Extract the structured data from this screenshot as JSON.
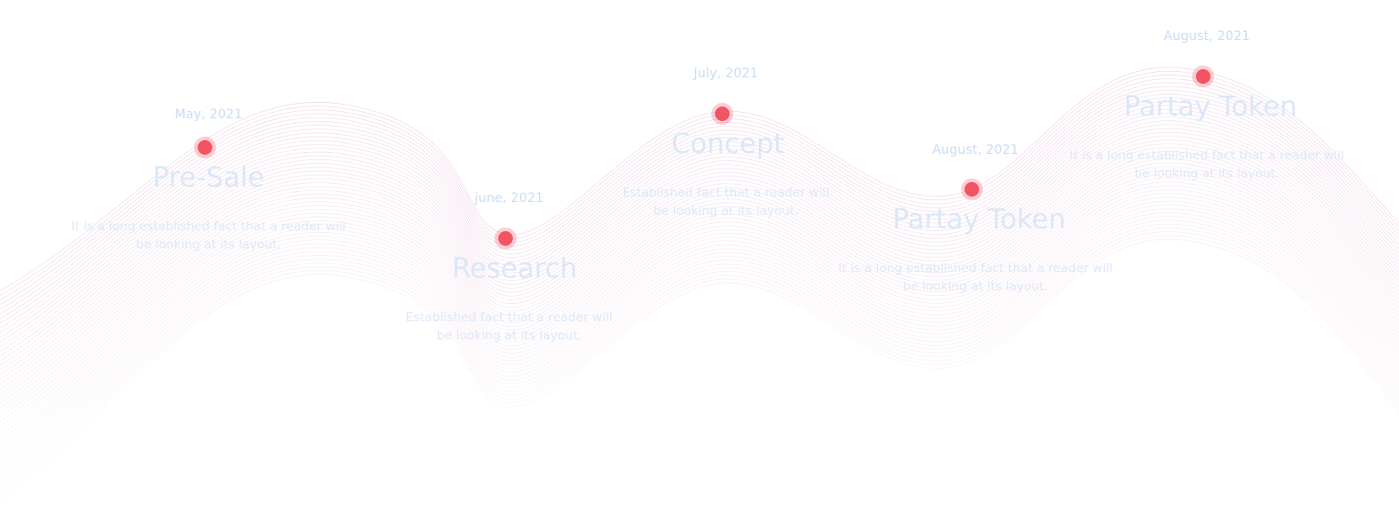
{
  "milestones": [
    {
      "date": "May, 2021",
      "title": "Pre-Sale",
      "description": "It is a long established fact that a reader will be looking at its layout."
    },
    {
      "date": "june, 2021",
      "title": "Research",
      "description": "Established fact that a reader will be looking at its layout."
    },
    {
      "date": "July, 2021",
      "title": "Concept",
      "description": "Established fact that a reader will be looking at its layout."
    },
    {
      "date": "August, 2021",
      "title": "Partay Token",
      "description": "It is a long established fact that a reader will be looking at its layout."
    },
    {
      "date": "August, 2021",
      "title": "Partay Token",
      "description": "It is a long established fact that a reader will be looking at its layout."
    }
  ],
  "colors": {
    "dot": "#f15462",
    "wave_lines": "#e6b5d6",
    "text": "#c8dcf6"
  }
}
